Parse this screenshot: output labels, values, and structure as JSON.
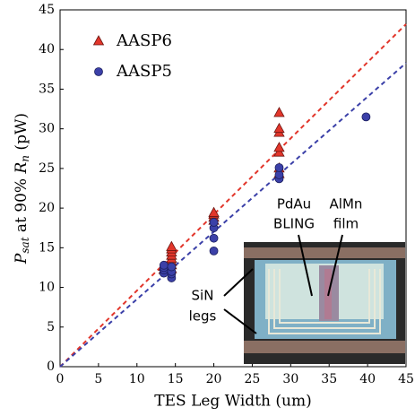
{
  "chart_data": {
    "type": "scatter",
    "xlabel": "TES Leg Width (um)",
    "ylabel": [
      "P",
      "sat",
      " at 90% ",
      "R",
      "n",
      " (pW)"
    ],
    "xlim": [
      0,
      45
    ],
    "ylim": [
      0,
      45
    ],
    "xticks": [
      0,
      5,
      10,
      15,
      20,
      25,
      30,
      35,
      40,
      45
    ],
    "yticks": [
      0,
      5,
      10,
      15,
      20,
      25,
      30,
      35,
      40,
      45
    ],
    "legend": "upper-left",
    "series": [
      {
        "name": "AASP6",
        "color": "#e2362b",
        "marker": "triangle",
        "x": [
          13.5,
          13.5,
          14.5,
          14.5,
          14.5,
          14.5,
          14.5,
          14.5,
          14.5,
          14.5,
          20,
          20,
          20,
          20,
          28.5,
          28.5,
          28.5,
          28.5,
          28.5,
          28.5,
          28.5
        ],
        "values": [
          12.2,
          12.6,
          12.3,
          12.8,
          13.2,
          13.6,
          14.0,
          14.4,
          14.8,
          15.1,
          18.4,
          18.8,
          19.2,
          19.4,
          24.3,
          25.0,
          27.0,
          27.6,
          29.5,
          30.0,
          32.0
        ]
      },
      {
        "name": "AASP5",
        "color": "#3b40a8",
        "marker": "circle",
        "x": [
          13.5,
          13.5,
          13.5,
          13.5,
          14.5,
          14.5,
          14.5,
          14.5,
          20,
          20,
          20,
          20,
          28.5,
          28.5,
          28.5,
          39.8
        ],
        "values": [
          11.8,
          12.2,
          12.5,
          12.8,
          11.2,
          11.7,
          12.0,
          12.6,
          14.6,
          16.2,
          17.5,
          18.2,
          23.7,
          24.2,
          25.1,
          31.5
        ]
      }
    ],
    "fits": [
      {
        "color": "#e2362b",
        "x": [
          0,
          45
        ],
        "values": [
          0,
          43.2
        ]
      },
      {
        "color": "#3b40a8",
        "x": [
          0,
          45
        ],
        "values": [
          0,
          38.3
        ]
      }
    ],
    "inset_labels": {
      "pdau": [
        "PdAu",
        "BLING"
      ],
      "almn": [
        "AlMn",
        "film"
      ],
      "sin": [
        "SiN",
        "legs"
      ]
    }
  }
}
